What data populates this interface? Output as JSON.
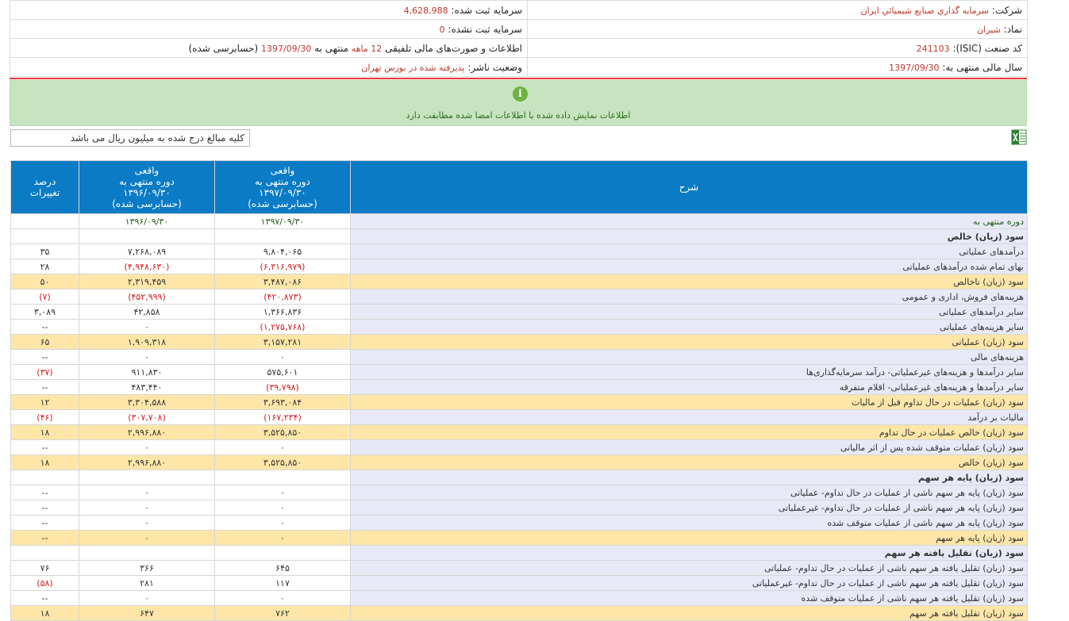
{
  "header": {
    "company_label": "شرکت:",
    "company_value": "سرمايه گذاري صنايع شيميائي ايران",
    "registered_capital_label": "سرمایه ثبت شده:",
    "registered_capital_value": "4,628,988",
    "symbol_label": "نماد:",
    "symbol_value": "شیران",
    "unregistered_capital_label": "سرمایه ثبت نشده:",
    "unregistered_capital_value": "0",
    "isic_label": "کد صنعت (ISIC):",
    "isic_value": "241103",
    "report_prefix": "اطلاعات و صورت‌های مالی تلفیقی",
    "report_period": "12 ماهه",
    "report_mid": "منتهی به",
    "report_date": "1397/09/30",
    "report_suffix": "(حسابرسی شده)",
    "fiscal_year_label": "سال مالی منتهی به:",
    "fiscal_year_value": "1397/09/30",
    "publisher_status_label": "وضعیت ناشر:",
    "publisher_status_value": "پذیرفته شده در بورس تهران"
  },
  "notice": {
    "icon_glyph": "i",
    "text": "اطلاعات نمایش داده شده با اطلاعات امضا شده مطابقت دارد"
  },
  "unit_note": "کلیه مبالغ درج شده به میلیون ریال می باشد",
  "table": {
    "headers": {
      "desc": "شرح",
      "col1": [
        "واقعی",
        "دوره منتهی به",
        "۱۳۹۷/۰۹/۳۰",
        "(حسابرسی شده)"
      ],
      "col2": [
        "واقعی",
        "دوره منتهی به",
        "۱۳۹۶/۰۹/۳۰",
        "(حسابرسی شده)"
      ],
      "col3": [
        "درصد",
        "تغییرات"
      ]
    },
    "rows": [
      {
        "type": "per",
        "desc": "دوره منتهی به",
        "c1": "۱۳۹۷/۰۹/۳۰",
        "c2": "۱۳۹۶/۰۹/۳۰",
        "c3": ""
      },
      {
        "type": "sec",
        "desc": "سود (زیان) خالص",
        "c1": "",
        "c2": "",
        "c3": ""
      },
      {
        "type": "",
        "desc": "درآمدهای عملیاتی",
        "c1": "۹,۸۰۴,۰۶۵",
        "c2": "۷,۲۶۸,۰۸۹",
        "c3": "۳۵"
      },
      {
        "type": "",
        "desc": "بهای تمام شده درآمدهای عملیاتی",
        "c1": "(۶,۳۱۶,۹۷۹)",
        "c2": "(۴,۹۴۸,۶۳۰)",
        "c3": "۲۸"
      },
      {
        "type": "hl",
        "desc": "سود (زیان) ناخالص",
        "c1": "۳,۴۸۷,۰۸۶",
        "c2": "۲,۳۱۹,۴۵۹",
        "c3": "۵۰"
      },
      {
        "type": "",
        "desc": "هزینه‌های فروش، اداری و عمومی",
        "c1": "(۴۲۰,۸۷۳)",
        "c2": "(۴۵۲,۹۹۹)",
        "c3": "(۷)"
      },
      {
        "type": "",
        "desc": "سایر درآمدهای عملیاتی",
        "c1": "۱,۳۶۶,۸۳۶",
        "c2": "۴۲,۸۵۸",
        "c3": "۳,۰۸۹"
      },
      {
        "type": "",
        "desc": "سایر هزینه‌های عملیاتی",
        "c1": "(۱,۲۷۵,۷۶۸)",
        "c2": "۰",
        "c3": "--"
      },
      {
        "type": "hl",
        "desc": "سود (زیان) عملیاتی",
        "c1": "۳,۱۵۷,۲۸۱",
        "c2": "۱,۹۰۹,۳۱۸",
        "c3": "۶۵"
      },
      {
        "type": "",
        "desc": "هزینه‌های مالی",
        "c1": "۰",
        "c2": "۰",
        "c3": "--"
      },
      {
        "type": "",
        "desc": "سایر درآمدها و هزینه‌های غیرعملیاتی- درآمد سرمایه‌گذاری‌ها",
        "c1": "۵۷۵,۶۰۱",
        "c2": "۹۱۱,۸۳۰",
        "c3": "(۳۷)"
      },
      {
        "type": "",
        "desc": "سایر درآمدها و هزینه‌های غیرعملیاتی- اقلام متفرقه",
        "c1": "(۳۹,۷۹۸)",
        "c2": "۴۸۳,۴۴۰",
        "c3": "--"
      },
      {
        "type": "hl",
        "desc": "سود (زیان) عملیات در حال تداوم قبل از مالیات",
        "c1": "۳,۶۹۳,۰۸۴",
        "c2": "۳,۳۰۴,۵۸۸",
        "c3": "۱۲"
      },
      {
        "type": "",
        "desc": "مالیات بر درآمد",
        "c1": "(۱۶۷,۲۳۴)",
        "c2": "(۳۰۷,۷۰۸)",
        "c3": "(۴۶)"
      },
      {
        "type": "hl",
        "desc": "سود (زیان) خالص عملیات در حال تداوم",
        "c1": "۳,۵۲۵,۸۵۰",
        "c2": "۲,۹۹۶,۸۸۰",
        "c3": "۱۸"
      },
      {
        "type": "",
        "desc": "سود (زیان) عملیات متوقف شده پس از اثر مالیاتی",
        "c1": "۰",
        "c2": "۰",
        "c3": "--"
      },
      {
        "type": "hl",
        "desc": "سود (زیان) خالص",
        "c1": "۳,۵۲۵,۸۵۰",
        "c2": "۲,۹۹۶,۸۸۰",
        "c3": "۱۸"
      },
      {
        "type": "sec",
        "desc": "سود (زیان) پایه هر سهم",
        "c1": "",
        "c2": "",
        "c3": ""
      },
      {
        "type": "",
        "desc": "سود (زیان) پایه هر سهم ناشی از عملیات در حال تداوم- عملیاتی",
        "c1": "۰",
        "c2": "۰",
        "c3": "--"
      },
      {
        "type": "",
        "desc": "سود (زیان) پایه هر سهم ناشی از عملیات در حال تداوم- غیرعملیاتی",
        "c1": "۰",
        "c2": "۰",
        "c3": "--"
      },
      {
        "type": "",
        "desc": "سود (زیان) پایه هر سهم ناشی از عملیات متوقف شده",
        "c1": "۰",
        "c2": "۰",
        "c3": "--"
      },
      {
        "type": "hl",
        "desc": "سود (زیان) پایه هر سهم",
        "c1": "۰",
        "c2": "۰",
        "c3": "--"
      },
      {
        "type": "sec",
        "desc": "سود (زیان) تقلیل یافته هر سهم",
        "c1": "",
        "c2": "",
        "c3": ""
      },
      {
        "type": "",
        "desc": "سود (زیان) تقلیل یافته هر سهم ناشی از عملیات در حال تداوم- عملیاتی",
        "c1": "۶۴۵",
        "c2": "۳۶۶",
        "c3": "۷۶"
      },
      {
        "type": "",
        "desc": "سود (زیان) تقلیل یافته هر سهم ناشی از عملیات در حال تداوم- غیرعملیاتی",
        "c1": "۱۱۷",
        "c2": "۲۸۱",
        "c3": "(۵۸)"
      },
      {
        "type": "",
        "desc": "سود (زیان) تقلیل یافته هر سهم ناشی از عملیات متوقف شده",
        "c1": "۰",
        "c2": "۰",
        "c3": "--"
      },
      {
        "type": "hl",
        "desc": "سود (زیان) تقلیل یافته هر سهم",
        "c1": "۷۶۲",
        "c2": "۶۴۷",
        "c3": "۱۸"
      }
    ]
  }
}
